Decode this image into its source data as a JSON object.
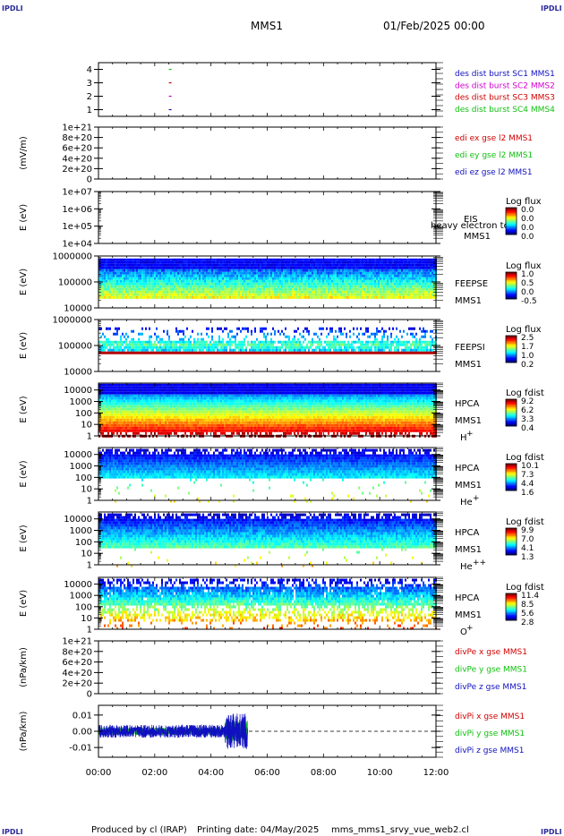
{
  "header": {
    "corner_label": "IPDLI",
    "mission": "MMS1",
    "date": "01/Feb/2025 00:00"
  },
  "footer": {
    "produced_by": "Produced by  cl (IRAP)",
    "printing_date": "Printing date: 04/May/2025",
    "script": "mms_mms1_srvy_vue_web2.cl"
  },
  "colors": {
    "blue": "#1010c0",
    "magenta": "#d000d0",
    "red": "#d00000",
    "green": "#10c010"
  },
  "chart_data": [
    {
      "id": "burst",
      "type": "line",
      "ylabel": "",
      "yticks": [
        "1",
        "2",
        "3",
        "4"
      ],
      "ylim": [
        0.5,
        4.5
      ],
      "legend": [
        {
          "text": "des dist burst SC1 MMS1",
          "color": "#1010c0"
        },
        {
          "text": "des dist burst SC2 MMS2",
          "color": "#d000d0"
        },
        {
          "text": "des dist burst SC3 MMS3",
          "color": "#d00000"
        },
        {
          "text": "des dist burst SC4 MMS4",
          "color": "#10c010"
        }
      ],
      "marks": [
        {
          "time_h": 2.55,
          "y": 4,
          "color": "#10c010"
        },
        {
          "time_h": 2.55,
          "y": 3,
          "color": "#d00000"
        },
        {
          "time_h": 2.55,
          "y": 2,
          "color": "#d000d0"
        },
        {
          "time_h": 2.55,
          "y": 1,
          "color": "#1010c0"
        }
      ]
    },
    {
      "id": "edi",
      "type": "line",
      "ylabel": "(mV/m)",
      "yticks": [
        "0",
        "2e+20",
        "4e+20",
        "6e+20",
        "8e+20",
        "1e+21"
      ],
      "ylim": [
        0,
        1e+21
      ],
      "legend": [
        {
          "text": "edi ex gse l2 MMS1",
          "color": "#d00000"
        },
        {
          "text": "edi ey gse l2 MMS1",
          "color": "#10c010"
        },
        {
          "text": "edi ez gse l2 MMS1",
          "color": "#1010c0"
        }
      ],
      "zero_line": true
    },
    {
      "id": "eis",
      "type": "heatmap",
      "ylabel": "E (eV)",
      "yticks": [
        "1e+04",
        "1e+05",
        "1e+06",
        "1e+07"
      ],
      "ylim": [
        10000,
        10000000
      ],
      "yscale": "log",
      "label_lines": [
        "EIS",
        "MMS1"
      ],
      "overlay_text": "heavy electron to",
      "cbar_title": "Log flux",
      "cbar_ticks": [
        "0.0",
        "0.0",
        "0.0",
        "0.0"
      ],
      "data_band": null
    },
    {
      "id": "feepse",
      "type": "heatmap",
      "ylabel": "E (eV)",
      "yticks": [
        "10000",
        "100000",
        "1000000"
      ],
      "ylim": [
        10000,
        1000000
      ],
      "yscale": "log",
      "label_lines": [
        "FEEPSE",
        "MMS1"
      ],
      "cbar_title": "Log flux",
      "cbar_ticks": [
        "1.0",
        "0.5",
        "0.0",
        "-0.5"
      ],
      "time_range_h": [
        0,
        12
      ],
      "data_band": {
        "ymin": 25000,
        "ymax": 800000,
        "style": "feeps"
      }
    },
    {
      "id": "feepsi",
      "type": "heatmap",
      "ylabel": "E (eV)",
      "yticks": [
        "10000",
        "100000",
        "1000000"
      ],
      "ylim": [
        10000,
        1000000
      ],
      "yscale": "log",
      "label_lines": [
        "FEEPSI",
        "MMS1"
      ],
      "cbar_title": "Log flux",
      "cbar_ticks": [
        "2.5",
        "1.7",
        "1.0",
        "0.2"
      ],
      "time_range_h": [
        0,
        12
      ],
      "data_band": {
        "ymin": 55000,
        "ymax": 500000,
        "style": "feepsi"
      }
    },
    {
      "id": "hpca_h",
      "type": "heatmap",
      "ylabel": "E (eV)",
      "yticks": [
        "1",
        "10",
        "100",
        "1000",
        "10000"
      ],
      "ylim": [
        1,
        40000
      ],
      "yscale": "log",
      "label_lines": [
        "HPCA",
        "MMS1"
      ],
      "species": "H",
      "species_sup": "+",
      "cbar_title": "Log fdist",
      "cbar_ticks": [
        "9.2",
        "6.2",
        "3.3",
        "0.4"
      ],
      "time_range_h": [
        0,
        12
      ],
      "data_band": {
        "ymin": 1,
        "ymax": 35000,
        "style": "hpca_h"
      }
    },
    {
      "id": "hpca_he",
      "type": "heatmap",
      "ylabel": "E (eV)",
      "yticks": [
        "1",
        "10",
        "100",
        "1000",
        "10000"
      ],
      "ylim": [
        1,
        40000
      ],
      "yscale": "log",
      "label_lines": [
        "HPCA",
        "MMS1"
      ],
      "species": "He",
      "species_sup": "+",
      "cbar_title": "Log fdist",
      "cbar_ticks": [
        "10.1",
        "7.3",
        "4.4",
        "1.6"
      ],
      "time_range_h": [
        0,
        12
      ],
      "data_band": {
        "ymin": 1,
        "ymax": 30000,
        "style": "hpca_he"
      }
    },
    {
      "id": "hpca_hepp",
      "type": "heatmap",
      "ylabel": "E (eV)",
      "yticks": [
        "1",
        "10",
        "100",
        "1000",
        "10000"
      ],
      "ylim": [
        1,
        40000
      ],
      "yscale": "log",
      "label_lines": [
        "HPCA",
        "MMS1"
      ],
      "species": "He",
      "species_sup": "++",
      "cbar_title": "Log fdist",
      "cbar_ticks": [
        "9.9",
        "7.0",
        "4.1",
        "1.3"
      ],
      "time_range_h": [
        0,
        12
      ],
      "data_band": {
        "ymin": 1,
        "ymax": 30000,
        "style": "hpca_hepp"
      }
    },
    {
      "id": "hpca_o",
      "type": "heatmap",
      "ylabel": "E (eV)",
      "yticks": [
        "1",
        "10",
        "100",
        "1000",
        "10000"
      ],
      "ylim": [
        1,
        40000
      ],
      "yscale": "log",
      "label_lines": [
        "HPCA",
        "MMS1"
      ],
      "species": "O",
      "species_sup": "+",
      "cbar_title": "Log fdist",
      "cbar_ticks": [
        "11.4",
        "8.5",
        "5.6",
        "2.8"
      ],
      "time_range_h": [
        0,
        12
      ],
      "data_band": {
        "ymin": 1,
        "ymax": 30000,
        "style": "hpca_o"
      }
    },
    {
      "id": "divpe",
      "type": "line",
      "ylabel": "(nPa/km)",
      "yticks": [
        "0",
        "2e+20",
        "4e+20",
        "6e+20",
        "8e+20",
        "1e+21"
      ],
      "ylim": [
        0,
        1e+21
      ],
      "legend": [
        {
          "text": "divPe x gse MMS1",
          "color": "#d00000"
        },
        {
          "text": "divPe y gse MMS1",
          "color": "#10c010"
        },
        {
          "text": "divPe z gse MMS1",
          "color": "#1010c0"
        }
      ],
      "zero_line": true
    },
    {
      "id": "divpi",
      "type": "line",
      "ylabel": "(nPa/km)",
      "yticks": [
        "-0.01",
        "0.00",
        "0.01"
      ],
      "ylim": [
        -0.016,
        0.016
      ],
      "legend": [
        {
          "text": "divPi x gse MMS1",
          "color": "#d00000"
        },
        {
          "text": "divPi y gse MMS1",
          "color": "#10c010"
        },
        {
          "text": "divPi z gse MMS1",
          "color": "#1010c0"
        }
      ],
      "zero_line": true,
      "noise": {
        "t_end_h": 5.3,
        "amp": 0.004,
        "burst_start_h": 4.5,
        "burst_amp": 0.011
      }
    }
  ],
  "time_axis": {
    "range_h": [
      0,
      12
    ],
    "ticks": [
      "00:00",
      "02:00",
      "04:00",
      "06:00",
      "08:00",
      "10:00",
      "12:00"
    ]
  }
}
